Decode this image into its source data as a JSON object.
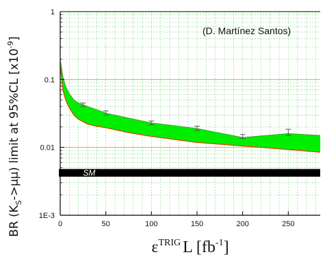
{
  "chart_data": {
    "type": "area",
    "credit": "(D. Martínez Santos)",
    "ylabel": "BR (K",
    "ylabel_sub": "S",
    "ylabel_rest": "->μμ) limit at 95%CL [x10",
    "ylabel_sup": "-9",
    "ylabel_end": "]",
    "xlabel_main": "ε",
    "xlabel_sup": "TRIG",
    "xlabel_mid": "L [fb",
    "xlabel_sup2": "-1",
    "xlabel_end": "]",
    "x_ticks": [
      "0",
      "50",
      "100",
      "150",
      "200",
      "250"
    ],
    "y_ticks": [
      "1",
      "0.1",
      "0.01",
      "1E-3"
    ],
    "xlim": [
      0,
      285
    ],
    "ylim": [
      0.001,
      1
    ],
    "yscale": "log",
    "grid": true,
    "band": {
      "color": "#00ee00",
      "edge_color": "#d84a00",
      "x": [
        0,
        3,
        6,
        10,
        15,
        20,
        30,
        40,
        50,
        75,
        100,
        150,
        200,
        250,
        285
      ],
      "upper": [
        0.2,
        0.11,
        0.079,
        0.062,
        0.05,
        0.045,
        0.04,
        0.036,
        0.032,
        0.027,
        0.023,
        0.019,
        0.014,
        0.016,
        0.015
      ],
      "lower": [
        0.16,
        0.07,
        0.05,
        0.038,
        0.03,
        0.026,
        0.022,
        0.0205,
        0.0195,
        0.0165,
        0.0145,
        0.0118,
        0.0105,
        0.0093,
        0.0085
      ]
    },
    "error_points": [
      {
        "x": 25,
        "y": 0.042,
        "lo": 0.04,
        "hi": 0.045
      },
      {
        "x": 50,
        "y": 0.032,
        "lo": 0.03,
        "hi": 0.0345
      },
      {
        "x": 100,
        "y": 0.023,
        "lo": 0.0215,
        "hi": 0.0245
      },
      {
        "x": 150,
        "y": 0.019,
        "lo": 0.0178,
        "hi": 0.0205
      },
      {
        "x": 200,
        "y": 0.0145,
        "lo": 0.0135,
        "hi": 0.0155
      },
      {
        "x": 250,
        "y": 0.0165,
        "lo": 0.015,
        "hi": 0.0185
      }
    ],
    "sm_band": {
      "label": "SM",
      "ylo": 0.0037,
      "yhi": 0.0048,
      "color": "#000000"
    },
    "ref_lines_y": [
      0.1,
      0.01
    ]
  }
}
